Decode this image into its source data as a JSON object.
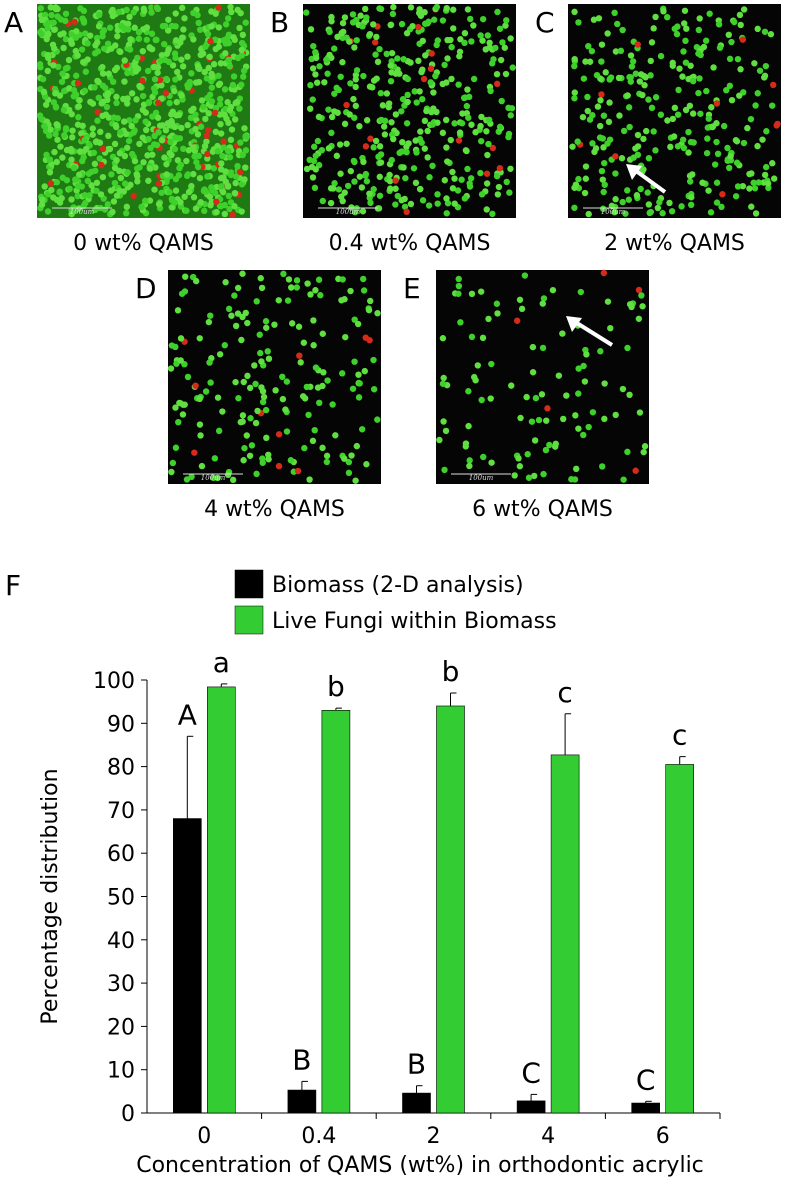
{
  "panels": [
    {
      "letter": "A",
      "caption": "0 wt% QAMS",
      "scale_label": "100um"
    },
    {
      "letter": "B",
      "caption": "0.4 wt% QAMS",
      "scale_label": "100um"
    },
    {
      "letter": "C",
      "caption": "2 wt% QAMS",
      "scale_label": "100um"
    },
    {
      "letter": "D",
      "caption": "4 wt% QAMS",
      "scale_label": "100um"
    },
    {
      "letter": "E",
      "caption": "6 wt% QAMS",
      "scale_label": "100um"
    }
  ],
  "chart_data": {
    "type": "bar",
    "panel_letter": "F",
    "x_label": "Concentration of QAMS (wt%) in orthodontic acrylic",
    "y_label": "Percentage distribution",
    "categories": [
      "0",
      "0.4",
      "2",
      "4",
      "6"
    ],
    "series": [
      {
        "name": "Biomass (2-D analysis)",
        "color": "#000000",
        "values": [
          68,
          5.3,
          4.6,
          2.8,
          2.3
        ],
        "errors": [
          19,
          2,
          1.7,
          1.5,
          0.4
        ],
        "letters": [
          "A",
          "B",
          "B",
          "C",
          "C"
        ]
      },
      {
        "name": "Live Fungi within Biomass",
        "color": "#33cc33",
        "values": [
          98.4,
          93,
          94,
          82.7,
          80.5
        ],
        "errors": [
          0.7,
          0.5,
          3,
          9.5,
          1.8
        ],
        "letters": [
          "a",
          "b",
          "b",
          "c",
          "c"
        ]
      }
    ],
    "ylim": [
      0,
      100
    ],
    "yticks": [
      0,
      10,
      20,
      30,
      40,
      50,
      60,
      70,
      80,
      90,
      100
    ]
  }
}
